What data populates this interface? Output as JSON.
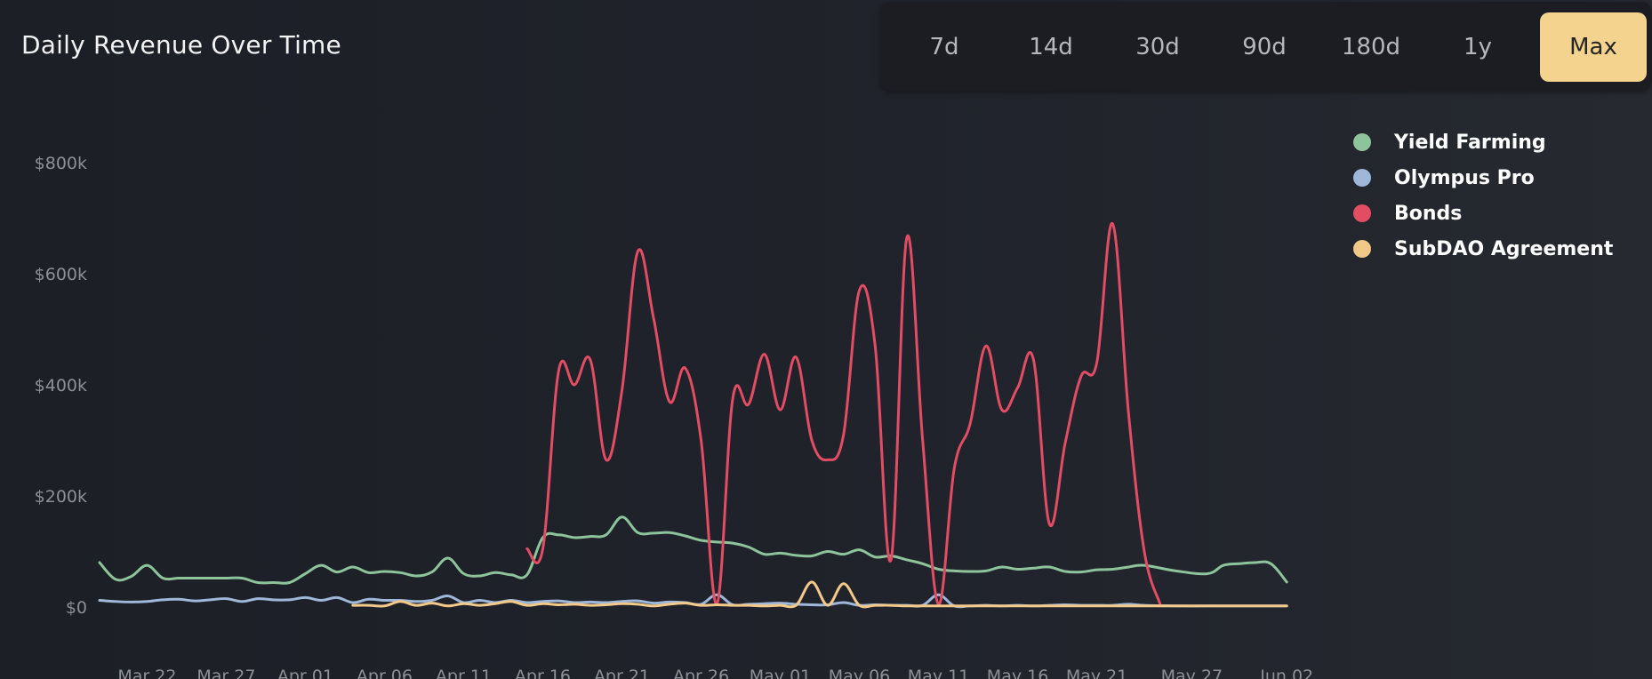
{
  "header": {
    "title": "Daily Revenue Over Time"
  },
  "range_selector": {
    "options": [
      "7d",
      "14d",
      "30d",
      "90d",
      "180d",
      "1y",
      "Max"
    ],
    "selected": "Max",
    "accent_color": "#f3d38e"
  },
  "chart_data": {
    "type": "line",
    "title": "Daily Revenue Over Time",
    "xlabel": "",
    "ylabel": "",
    "ylim": [
      0,
      900000
    ],
    "y_ticks": [
      0,
      200000,
      400000,
      600000,
      800000
    ],
    "y_tick_labels": [
      "$0",
      "$200k",
      "$400k",
      "$600k",
      "$800k"
    ],
    "x_range": [
      "2022-03-19",
      "2022-06-03"
    ],
    "x_ticks": [
      "2022-03-22",
      "2022-03-27",
      "2022-04-01",
      "2022-04-06",
      "2022-04-11",
      "2022-04-16",
      "2022-04-21",
      "2022-04-26",
      "2022-05-01",
      "2022-05-06",
      "2022-05-11",
      "2022-05-16",
      "2022-05-21",
      "2022-05-27",
      "2022-06-02"
    ],
    "x_tick_labels": [
      "Mar 22",
      "Mar 27",
      "Apr 01",
      "Apr 06",
      "Apr 11",
      "Apr 16",
      "Apr 21",
      "Apr 26",
      "May 01",
      "May 06",
      "May 11",
      "May 16",
      "May 21",
      "May 27",
      "Jun 02"
    ],
    "grid": false,
    "legend_position": "top-right",
    "series": [
      {
        "name": "Yield Farming",
        "color": "#8dc49c",
        "points": [
          [
            "2022-03-19",
            80000
          ],
          [
            "2022-03-20",
            50000
          ],
          [
            "2022-03-21",
            55000
          ],
          [
            "2022-03-22",
            75000
          ],
          [
            "2022-03-23",
            52000
          ],
          [
            "2022-03-24",
            52000
          ],
          [
            "2022-03-25",
            52000
          ],
          [
            "2022-03-26",
            52000
          ],
          [
            "2022-03-27",
            52000
          ],
          [
            "2022-03-28",
            52000
          ],
          [
            "2022-03-29",
            44000
          ],
          [
            "2022-03-30",
            44000
          ],
          [
            "2022-03-31",
            44000
          ],
          [
            "2022-04-01",
            60000
          ],
          [
            "2022-04-02",
            75000
          ],
          [
            "2022-04-03",
            63000
          ],
          [
            "2022-04-04",
            72000
          ],
          [
            "2022-04-05",
            62000
          ],
          [
            "2022-04-06",
            64000
          ],
          [
            "2022-04-07",
            62000
          ],
          [
            "2022-04-08",
            56000
          ],
          [
            "2022-04-09",
            63000
          ],
          [
            "2022-04-10",
            88000
          ],
          [
            "2022-04-11",
            60000
          ],
          [
            "2022-04-12",
            56000
          ],
          [
            "2022-04-13",
            62000
          ],
          [
            "2022-04-14",
            58000
          ],
          [
            "2022-04-15",
            58000
          ],
          [
            "2022-04-16",
            125000
          ],
          [
            "2022-04-17",
            130000
          ],
          [
            "2022-04-18",
            125000
          ],
          [
            "2022-04-19",
            127000
          ],
          [
            "2022-04-20",
            130000
          ],
          [
            "2022-04-21",
            162000
          ],
          [
            "2022-04-22",
            134000
          ],
          [
            "2022-04-23",
            133000
          ],
          [
            "2022-04-24",
            134000
          ],
          [
            "2022-04-25",
            128000
          ],
          [
            "2022-04-26",
            120000
          ],
          [
            "2022-04-27",
            117000
          ],
          [
            "2022-04-28",
            115000
          ],
          [
            "2022-04-29",
            108000
          ],
          [
            "2022-04-30",
            95000
          ],
          [
            "2022-05-01",
            97000
          ],
          [
            "2022-05-02",
            93000
          ],
          [
            "2022-05-03",
            92000
          ],
          [
            "2022-05-04",
            100000
          ],
          [
            "2022-05-05",
            95000
          ],
          [
            "2022-05-06",
            103000
          ],
          [
            "2022-05-07",
            90000
          ],
          [
            "2022-05-08",
            92000
          ],
          [
            "2022-05-09",
            85000
          ],
          [
            "2022-05-10",
            78000
          ],
          [
            "2022-05-11",
            68000
          ],
          [
            "2022-05-12",
            65000
          ],
          [
            "2022-05-13",
            64000
          ],
          [
            "2022-05-14",
            65000
          ],
          [
            "2022-05-15",
            72000
          ],
          [
            "2022-05-16",
            68000
          ],
          [
            "2022-05-17",
            70000
          ],
          [
            "2022-05-18",
            72000
          ],
          [
            "2022-05-19",
            64000
          ],
          [
            "2022-05-20",
            63000
          ],
          [
            "2022-05-21",
            67000
          ],
          [
            "2022-05-22",
            68000
          ],
          [
            "2022-05-23",
            72000
          ],
          [
            "2022-05-24",
            75000
          ],
          [
            "2022-05-26",
            65000
          ],
          [
            "2022-05-28",
            60000
          ],
          [
            "2022-05-29",
            75000
          ],
          [
            "2022-05-30",
            78000
          ],
          [
            "2022-05-31",
            80000
          ],
          [
            "2022-06-01",
            78000
          ],
          [
            "2022-06-02",
            45000
          ]
        ]
      },
      {
        "name": "Olympus Pro",
        "color": "#9fb7d8",
        "points": [
          [
            "2022-03-19",
            12000
          ],
          [
            "2022-03-20",
            10000
          ],
          [
            "2022-03-21",
            9000
          ],
          [
            "2022-03-22",
            10000
          ],
          [
            "2022-03-23",
            13000
          ],
          [
            "2022-03-24",
            14000
          ],
          [
            "2022-03-25",
            11000
          ],
          [
            "2022-03-26",
            13000
          ],
          [
            "2022-03-27",
            15000
          ],
          [
            "2022-03-28",
            10000
          ],
          [
            "2022-03-29",
            15000
          ],
          [
            "2022-03-30",
            13000
          ],
          [
            "2022-03-31",
            13000
          ],
          [
            "2022-04-01",
            17000
          ],
          [
            "2022-04-02",
            12000
          ],
          [
            "2022-04-03",
            17000
          ],
          [
            "2022-04-04",
            8000
          ],
          [
            "2022-04-05",
            14000
          ],
          [
            "2022-04-06",
            12000
          ],
          [
            "2022-04-07",
            12000
          ],
          [
            "2022-04-08",
            10000
          ],
          [
            "2022-04-09",
            12000
          ],
          [
            "2022-04-10",
            20000
          ],
          [
            "2022-04-11",
            8000
          ],
          [
            "2022-04-12",
            12000
          ],
          [
            "2022-04-13",
            8000
          ],
          [
            "2022-04-14",
            12000
          ],
          [
            "2022-04-15",
            8000
          ],
          [
            "2022-04-16",
            10000
          ],
          [
            "2022-04-17",
            11000
          ],
          [
            "2022-04-18",
            8000
          ],
          [
            "2022-04-19",
            9000
          ],
          [
            "2022-04-20",
            8000
          ],
          [
            "2022-04-21",
            10000
          ],
          [
            "2022-04-22",
            11000
          ],
          [
            "2022-04-23",
            7000
          ],
          [
            "2022-04-24",
            9000
          ],
          [
            "2022-04-25",
            8000
          ],
          [
            "2022-04-26",
            5000
          ],
          [
            "2022-04-27",
            22000
          ],
          [
            "2022-04-28",
            4000
          ],
          [
            "2022-04-29",
            5000
          ],
          [
            "2022-04-30",
            6000
          ],
          [
            "2022-05-01",
            7000
          ],
          [
            "2022-05-02",
            5000
          ],
          [
            "2022-05-03",
            4000
          ],
          [
            "2022-05-04",
            4000
          ],
          [
            "2022-05-05",
            8000
          ],
          [
            "2022-05-06",
            3000
          ],
          [
            "2022-05-07",
            4000
          ],
          [
            "2022-05-08",
            3000
          ],
          [
            "2022-05-09",
            3000
          ],
          [
            "2022-05-10",
            3000
          ],
          [
            "2022-05-11",
            22000
          ],
          [
            "2022-05-12",
            2000
          ],
          [
            "2022-05-13",
            2000
          ],
          [
            "2022-05-14",
            3000
          ],
          [
            "2022-05-15",
            2000
          ],
          [
            "2022-05-16",
            3000
          ],
          [
            "2022-05-17",
            2000
          ],
          [
            "2022-05-18",
            3000
          ],
          [
            "2022-05-19",
            4000
          ],
          [
            "2022-05-20",
            3000
          ],
          [
            "2022-05-21",
            3000
          ],
          [
            "2022-05-22",
            3000
          ],
          [
            "2022-05-23",
            5000
          ],
          [
            "2022-05-24",
            3000
          ],
          [
            "2022-05-26",
            2000
          ],
          [
            "2022-05-28",
            2000
          ],
          [
            "2022-05-30",
            2000
          ],
          [
            "2022-06-02",
            2000
          ]
        ]
      },
      {
        "name": "Bonds",
        "color": "#e24d64",
        "points": [
          [
            "2022-04-15",
            105000
          ],
          [
            "2022-04-16",
            105000
          ],
          [
            "2022-04-17",
            425000
          ],
          [
            "2022-04-18",
            400000
          ],
          [
            "2022-04-19",
            445000
          ],
          [
            "2022-04-20",
            265000
          ],
          [
            "2022-04-21",
            390000
          ],
          [
            "2022-04-22",
            640000
          ],
          [
            "2022-04-23",
            520000
          ],
          [
            "2022-04-24",
            370000
          ],
          [
            "2022-04-25",
            430000
          ],
          [
            "2022-04-26",
            300000
          ],
          [
            "2022-04-27",
            5000
          ],
          [
            "2022-04-28",
            375000
          ],
          [
            "2022-04-29",
            365000
          ],
          [
            "2022-04-30",
            455000
          ],
          [
            "2022-05-01",
            355000
          ],
          [
            "2022-05-02",
            450000
          ],
          [
            "2022-05-03",
            300000
          ],
          [
            "2022-05-04",
            265000
          ],
          [
            "2022-05-05",
            310000
          ],
          [
            "2022-05-06",
            570000
          ],
          [
            "2022-05-07",
            470000
          ],
          [
            "2022-05-08",
            85000
          ],
          [
            "2022-05-09",
            665000
          ],
          [
            "2022-05-10",
            300000
          ],
          [
            "2022-05-11",
            5000
          ],
          [
            "2022-05-12",
            250000
          ],
          [
            "2022-05-13",
            330000
          ],
          [
            "2022-05-14",
            470000
          ],
          [
            "2022-05-15",
            355000
          ],
          [
            "2022-05-16",
            395000
          ],
          [
            "2022-05-17",
            445000
          ],
          [
            "2022-05-18",
            150000
          ],
          [
            "2022-05-19",
            295000
          ],
          [
            "2022-05-20",
            415000
          ],
          [
            "2022-05-21",
            440000
          ],
          [
            "2022-05-22",
            690000
          ],
          [
            "2022-05-23",
            350000
          ],
          [
            "2022-05-24",
            100000
          ],
          [
            "2022-05-25",
            5000
          ]
        ]
      },
      {
        "name": "SubDAO Agreement",
        "color": "#f3c98a",
        "points": [
          [
            "2022-04-04",
            3000
          ],
          [
            "2022-04-05",
            3000
          ],
          [
            "2022-04-06",
            2000
          ],
          [
            "2022-04-07",
            10000
          ],
          [
            "2022-04-08",
            3000
          ],
          [
            "2022-04-09",
            7000
          ],
          [
            "2022-04-10",
            2000
          ],
          [
            "2022-04-11",
            6000
          ],
          [
            "2022-04-12",
            3000
          ],
          [
            "2022-04-13",
            6000
          ],
          [
            "2022-04-14",
            10000
          ],
          [
            "2022-04-15",
            3000
          ],
          [
            "2022-04-16",
            6000
          ],
          [
            "2022-04-17",
            4000
          ],
          [
            "2022-04-18",
            5000
          ],
          [
            "2022-04-19",
            3000
          ],
          [
            "2022-04-20",
            4000
          ],
          [
            "2022-04-21",
            6000
          ],
          [
            "2022-04-22",
            5000
          ],
          [
            "2022-04-23",
            2000
          ],
          [
            "2022-04-24",
            5000
          ],
          [
            "2022-04-25",
            7000
          ],
          [
            "2022-04-26",
            3000
          ],
          [
            "2022-04-27",
            4000
          ],
          [
            "2022-04-28",
            3000
          ],
          [
            "2022-04-29",
            3000
          ],
          [
            "2022-04-30",
            2000
          ],
          [
            "2022-05-01",
            3000
          ],
          [
            "2022-05-02",
            3000
          ],
          [
            "2022-05-03",
            45000
          ],
          [
            "2022-05-04",
            3000
          ],
          [
            "2022-05-05",
            42000
          ],
          [
            "2022-05-06",
            3000
          ],
          [
            "2022-05-07",
            3000
          ],
          [
            "2022-05-08",
            3000
          ],
          [
            "2022-05-09",
            2000
          ],
          [
            "2022-05-11",
            2000
          ],
          [
            "2022-05-14",
            2000
          ],
          [
            "2022-05-18",
            2000
          ],
          [
            "2022-05-22",
            2000
          ],
          [
            "2022-05-26",
            2000
          ],
          [
            "2022-05-30",
            2000
          ],
          [
            "2022-06-02",
            2000
          ]
        ]
      }
    ]
  }
}
